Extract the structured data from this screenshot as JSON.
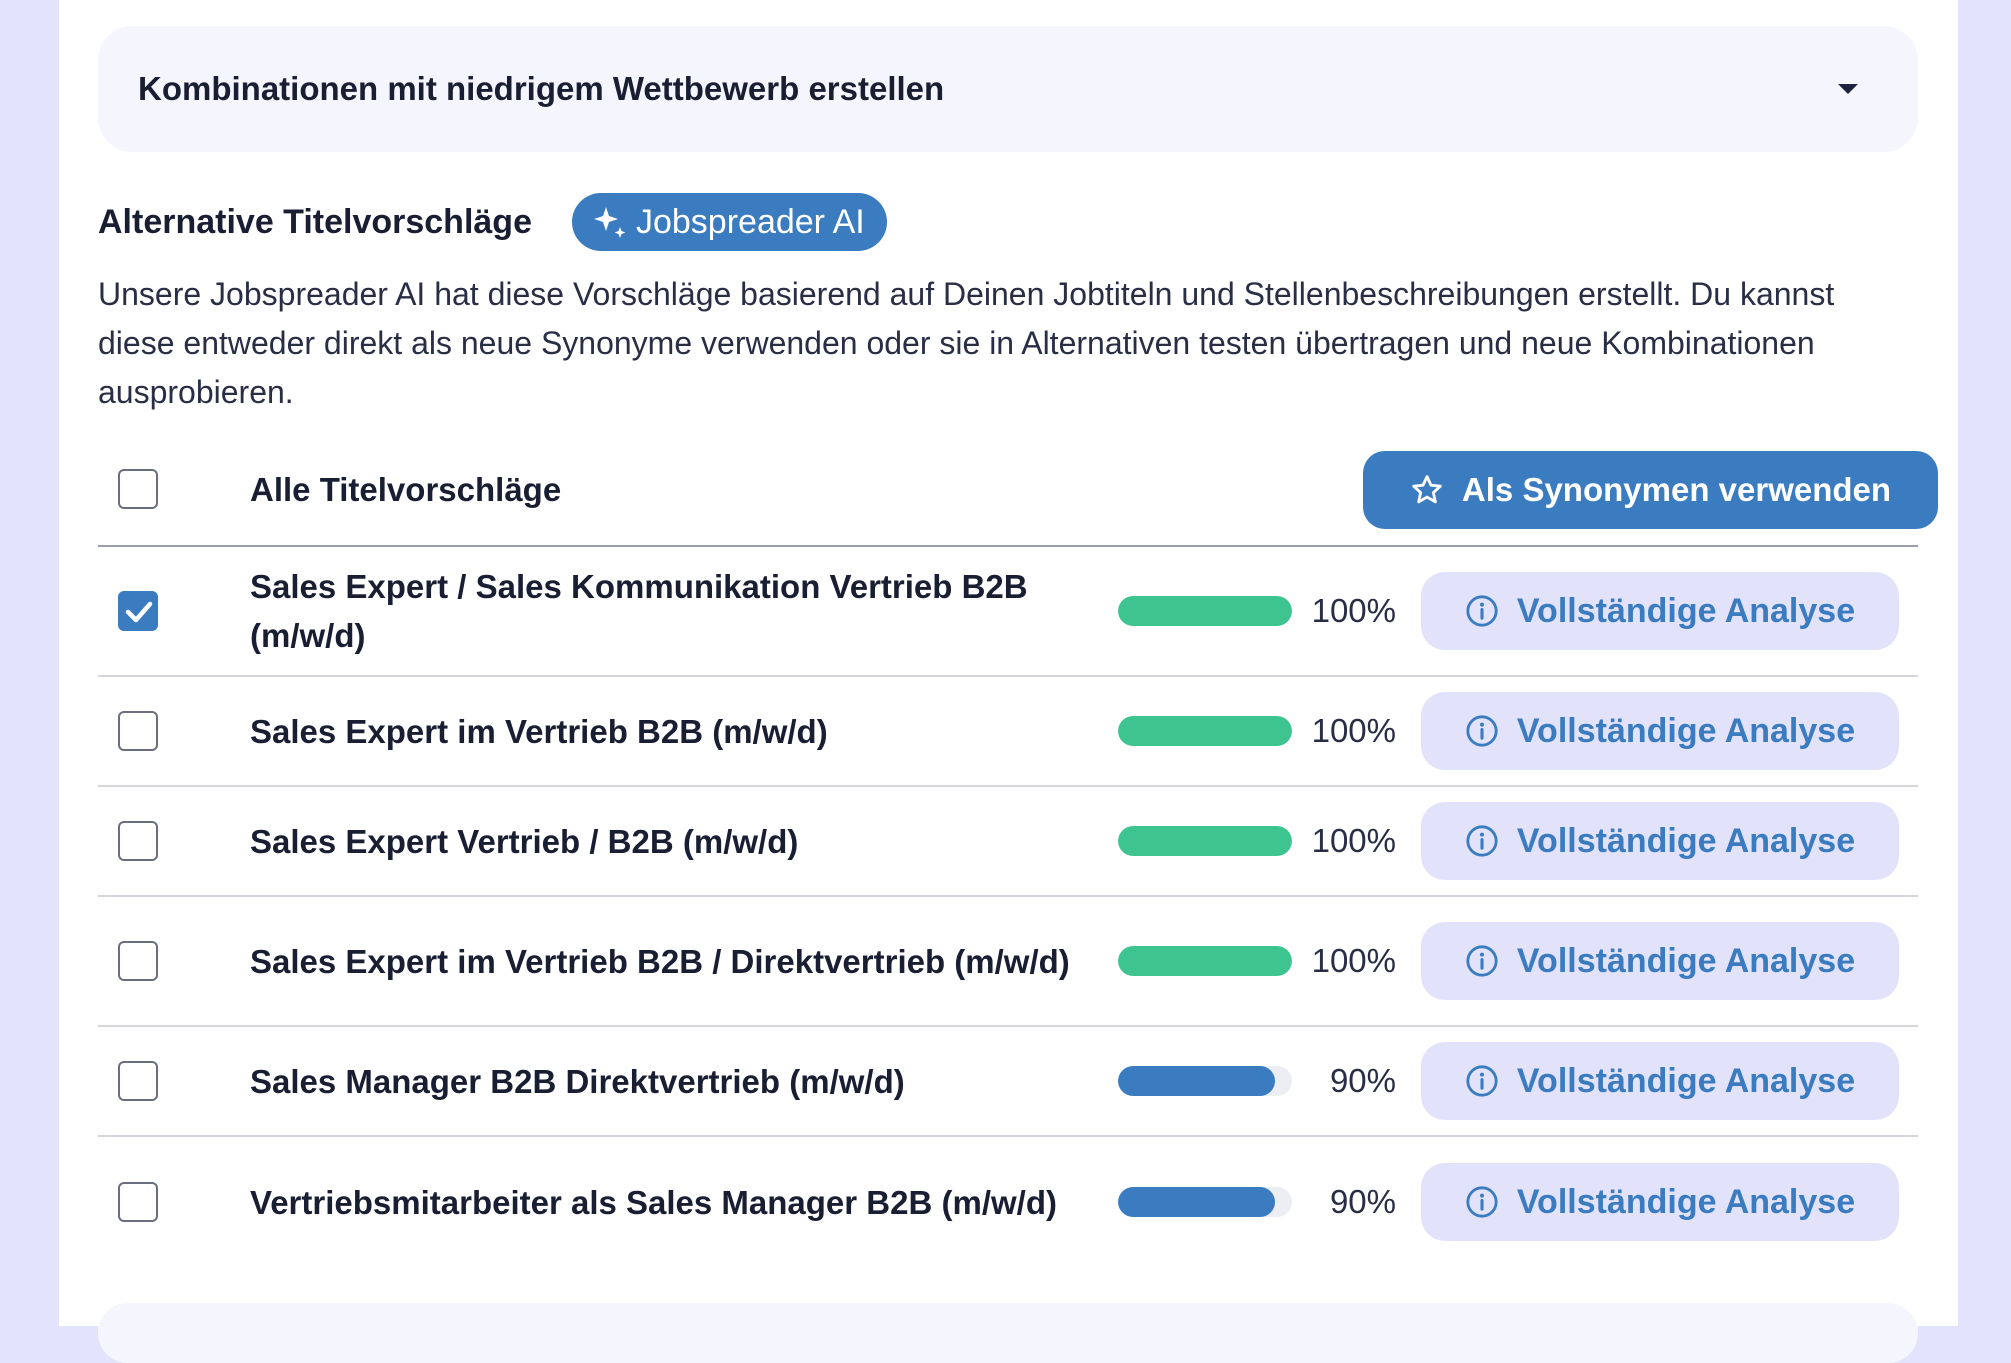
{
  "collapse": {
    "title": "Kombinationen mit niedrigem Wettbewerb erstellen",
    "icon": "caret-down-icon"
  },
  "section": {
    "label": "Alternative Titelvorschläge",
    "ai_badge": "Jobspreader AI",
    "description": "Unsere Jobspreader AI hat diese Vorschläge basierend auf Deinen Jobtiteln und Stellenbeschreibungen erstellt. Du kannst diese entweder direkt als neue Synonyme verwenden oder sie in Alternativen testen übertragen und neue Kombinationen ausprobieren."
  },
  "header_row": {
    "label": "Alle Titelvorschläge",
    "checked": false,
    "action_label": "Als Synonymen verwenden"
  },
  "colors": {
    "accent": "#3b7bc0",
    "green": "#3ec48e",
    "soft_button": "#e2e3fb"
  },
  "rows": [
    {
      "title": "Sales Expert / Sales Kommunikation Vertrieb B2B (m/w/d)",
      "percent_text": "100%",
      "percent": 100,
      "checked": true,
      "action_label": "Vollständige Analyse"
    },
    {
      "title": "Sales Expert im Vertrieb B2B (m/w/d)",
      "percent_text": "100%",
      "percent": 100,
      "checked": false,
      "action_label": "Vollständige Analyse"
    },
    {
      "title": "Sales Expert Vertrieb / B2B (m/w/d)",
      "percent_text": "100%",
      "percent": 100,
      "checked": false,
      "action_label": "Vollständige Analyse"
    },
    {
      "title": "Sales Expert im Vertrieb B2B / Direktvertrieb (m/w/d)",
      "percent_text": "100%",
      "percent": 100,
      "checked": false,
      "action_label": "Vollständige Analyse"
    },
    {
      "title": "Sales Manager B2B Direktvertrieb (m/w/d)",
      "percent_text": "90%",
      "percent": 90,
      "checked": false,
      "action_label": "Vollständige Analyse"
    },
    {
      "title": "Vertriebsmitarbeiter als Sales Manager B2B (m/w/d)",
      "percent_text": "90%",
      "percent": 90,
      "checked": false,
      "action_label": "Vollständige Analyse"
    }
  ]
}
